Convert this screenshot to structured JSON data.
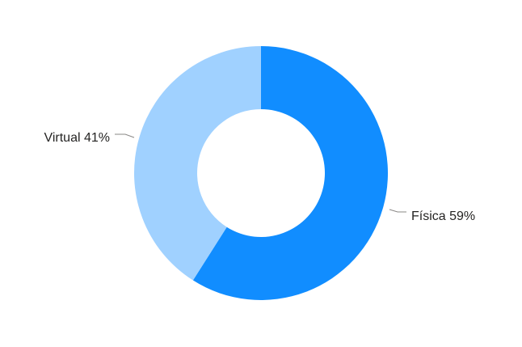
{
  "chart_data": {
    "type": "pie",
    "variant": "donut",
    "title": "",
    "legend": "none",
    "slices": [
      {
        "label": "Física",
        "value": 59,
        "display": "Física 59%",
        "color": "#118DFF"
      },
      {
        "label": "Virtual",
        "value": 41,
        "display": "Virtual 41%",
        "color": "#A0D1FF"
      }
    ]
  }
}
